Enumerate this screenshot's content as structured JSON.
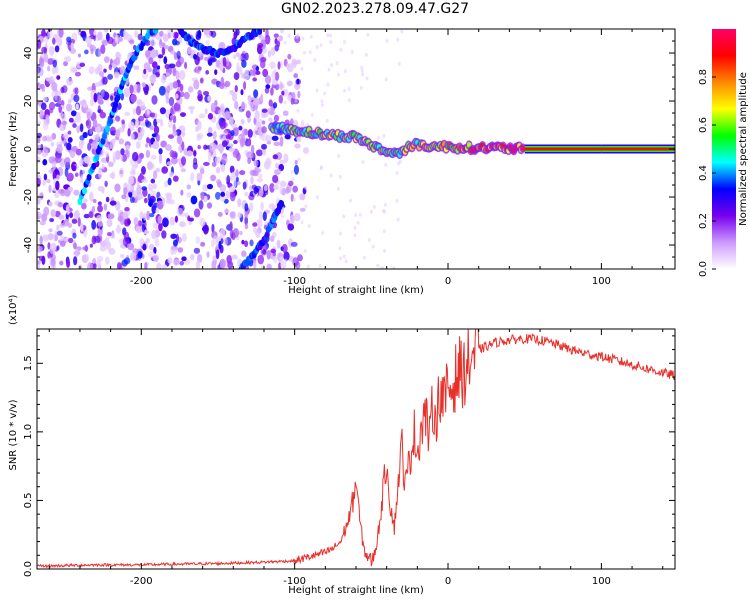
{
  "figure": {
    "title": "GN02.2023.278.09.47.G27"
  },
  "chart_data": [
    {
      "type": "heatmap",
      "title": "",
      "xlabel": "Height of straight line (km)",
      "ylabel": "Frequency (Hz)",
      "xlim": [
        -268,
        148
      ],
      "ylim": [
        -50,
        50
      ],
      "xticks": [
        -200,
        -100,
        0,
        100
      ],
      "yticks": [
        -40,
        -20,
        0,
        20,
        40
      ],
      "grid": false,
      "colorbar": {
        "label": "Normalized spectral amplitude",
        "range": [
          0.0,
          1.0
        ],
        "ticks": [
          "0.0",
          "0.2",
          "0.4",
          "0.6",
          "0.8"
        ],
        "colors": [
          "#ffffff",
          "#cc99ff",
          "#7700ee",
          "#0000ff",
          "#00ffff",
          "#00ff00",
          "#ffff00",
          "#ff8800",
          "#ff0000",
          "#ff0066"
        ]
      },
      "features": {
        "main_trace": {
          "description_points_x": [
            -115,
            -100,
            -80,
            -60,
            -45,
            -35,
            -20,
            -10,
            0,
            10,
            20,
            30,
            50,
            100,
            148
          ],
          "description_points_y": [
            9,
            8,
            6,
            5,
            0,
            -2,
            2,
            1,
            1,
            0.5,
            0.5,
            0.5,
            0,
            0,
            0
          ],
          "amplitude": [
            0.5,
            0.55,
            0.6,
            0.6,
            0.55,
            0.6,
            0.65,
            0.7,
            0.75,
            0.8,
            0.85,
            0.9,
            0.95,
            0.95,
            0.95
          ]
        },
        "diagonal_trace": {
          "x": [
            -240,
            -230,
            -220,
            -212,
            -205,
            -195,
            -190
          ],
          "y": [
            -22,
            -5,
            12,
            28,
            38,
            48,
            50
          ],
          "amplitude": 0.35
        },
        "upper_arc": {
          "x": [
            -175,
            -168,
            -160,
            -150,
            -140,
            -130,
            -122
          ],
          "y": [
            50,
            45,
            42,
            40,
            42,
            47,
            50
          ],
          "amplitude": 0.3
        },
        "lower_arc": {
          "x": [
            -135,
            -128,
            -120,
            -113,
            -108
          ],
          "y": [
            -50,
            -45,
            -38,
            -28,
            -22
          ],
          "amplitude": 0.3
        }
      }
    },
    {
      "type": "line",
      "title": "",
      "xlabel": "Height of straight line (km)",
      "ylabel": "SNR (10 * v/v)",
      "y_multiplier": "(x10⁴)",
      "xlim": [
        -268,
        148
      ],
      "ylim": [
        0,
        1.75
      ],
      "xticks": [
        -200,
        -100,
        0,
        100
      ],
      "yticks": [
        0.0,
        0.5,
        1.0,
        1.5
      ],
      "ytick_labels": [
        "0.0",
        "0.5",
        "1.0",
        "1.5"
      ],
      "grid": false,
      "series": [
        {
          "color": "#e8302a",
          "x": [
            -268,
            -250,
            -230,
            -200,
            -180,
            -150,
            -120,
            -100,
            -90,
            -80,
            -75,
            -70,
            -65,
            -62,
            -60,
            -58,
            -55,
            -52,
            -50,
            -48,
            -45,
            -42,
            -40,
            -38,
            -35,
            -32,
            -30,
            -28,
            -25,
            -22,
            -20,
            -18,
            -15,
            -12,
            -10,
            -8,
            -5,
            -2,
            0,
            2,
            5,
            8,
            10,
            15,
            20,
            25,
            30,
            35,
            40,
            50,
            60,
            70,
            80,
            90,
            100,
            110,
            120,
            130,
            140,
            148
          ],
          "y": [
            0.02,
            0.025,
            0.03,
            0.03,
            0.035,
            0.04,
            0.05,
            0.06,
            0.09,
            0.12,
            0.15,
            0.2,
            0.35,
            0.5,
            0.65,
            0.4,
            0.15,
            0.08,
            0.06,
            0.1,
            0.3,
            0.6,
            0.8,
            0.5,
            0.3,
            0.7,
            0.9,
            0.6,
            0.8,
            1.0,
            0.85,
            1.0,
            1.15,
            0.95,
            1.2,
            1.1,
            1.3,
            1.2,
            1.35,
            1.3,
            1.4,
            1.45,
            1.42,
            1.55,
            1.6,
            1.62,
            1.65,
            1.66,
            1.67,
            1.68,
            1.67,
            1.64,
            1.6,
            1.57,
            1.55,
            1.52,
            1.49,
            1.46,
            1.43,
            1.41
          ]
        }
      ]
    }
  ]
}
